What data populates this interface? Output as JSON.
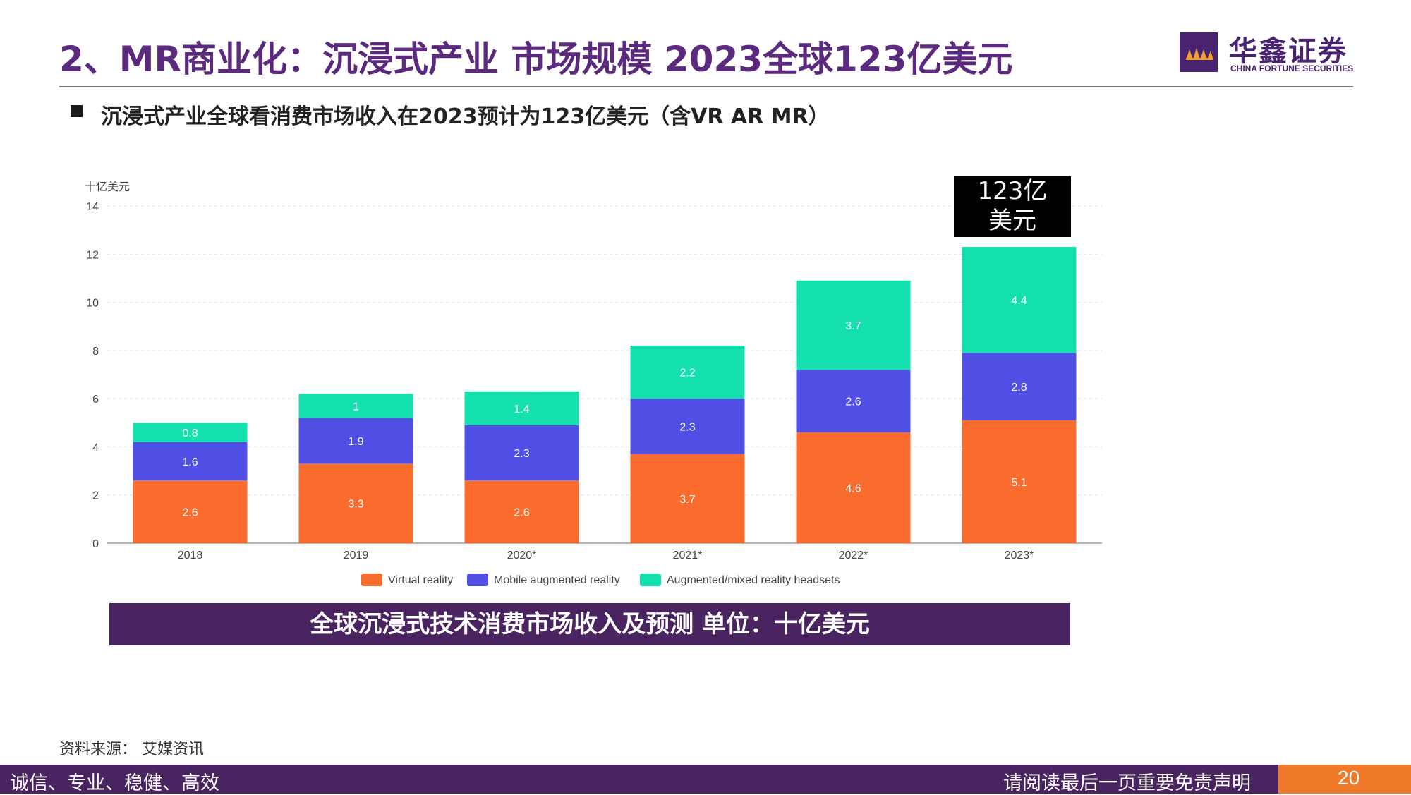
{
  "header": {
    "title": "2、MR商业化：沉浸式产业 市场规模 2023全球123亿美元",
    "logo_cn": "华鑫证券",
    "logo_en": "CHINA FORTUNE SECURITIES"
  },
  "subtitle": "沉浸式产业全球看消费市场收入在2023预计为123亿美元（含VR AR MR）",
  "callout": {
    "line1": "123亿",
    "line2": "美元"
  },
  "caption": "全球沉浸式技术消费市场收入及预测 单位：十亿美元",
  "source": "资料来源： 艾媒资讯",
  "footer": {
    "left": "诚信、专业、稳健、高效",
    "right": "请阅读最后一页重要免责声明",
    "page": "20"
  },
  "colors": {
    "vr": "#f96c2e",
    "mobile_ar": "#5050e6",
    "headsets": "#13e0ac",
    "purple": "#4a2361",
    "title": "#5b2a7e"
  },
  "icons": {
    "logo": "fortune-logo-icon",
    "bullet": "square-bullet-icon"
  },
  "chart_data": {
    "type": "bar",
    "stacked": true,
    "ylabel": "十亿美元",
    "ylim": [
      0,
      14
    ],
    "yticks": [
      0,
      2,
      4,
      6,
      8,
      10,
      12,
      14
    ],
    "grid": true,
    "legend_position": "bottom",
    "categories": [
      "2018",
      "2019",
      "2020*",
      "2021*",
      "2022*",
      "2023*"
    ],
    "series": [
      {
        "name": "Virtual reality",
        "color": "#f96c2e",
        "values": [
          2.6,
          3.3,
          2.6,
          3.7,
          4.6,
          5.1
        ],
        "labels": [
          "2.6",
          "3.3",
          "2.6",
          "3.7",
          "4.6",
          "5.1"
        ]
      },
      {
        "name": "Mobile augmented reality",
        "color": "#5050e6",
        "values": [
          1.6,
          1.9,
          2.3,
          2.3,
          2.6,
          2.8
        ],
        "labels": [
          "1.6",
          "1.9",
          "2.3",
          "2.3",
          "2.6",
          "2.8"
        ]
      },
      {
        "name": "Augmented/mixed reality headsets",
        "color": "#13e0ac",
        "values": [
          0.8,
          1,
          1.4,
          2.2,
          3.7,
          4.4
        ],
        "labels": [
          "0.8",
          "1",
          "1.4",
          "2.2",
          "3.7",
          "4.4"
        ]
      }
    ]
  }
}
